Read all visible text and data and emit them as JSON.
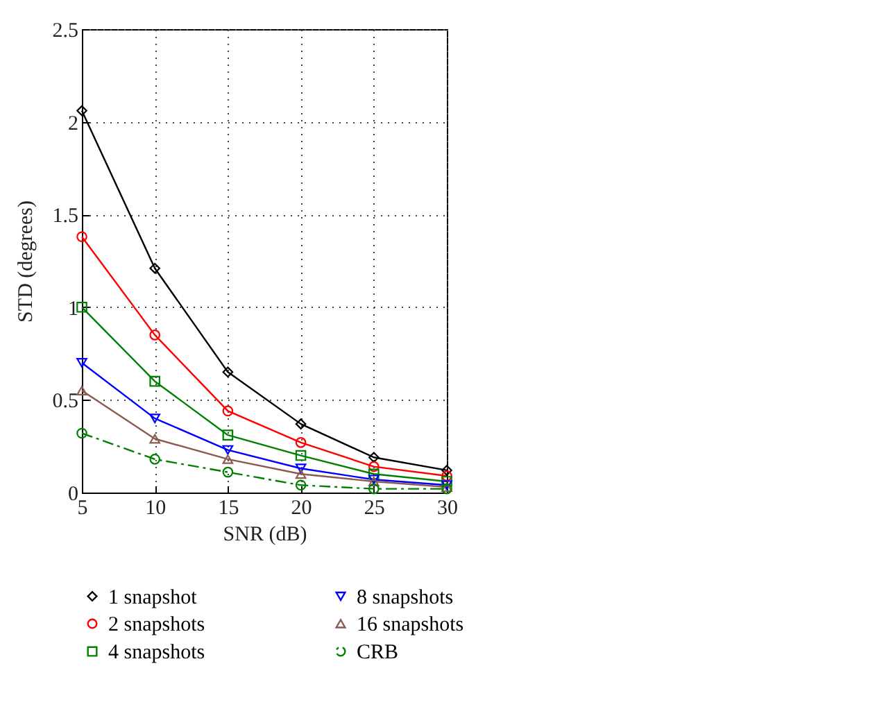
{
  "chart_data": {
    "type": "line",
    "xlabel": "SNR (dB)",
    "ylabel": "STD (degrees)",
    "x": [
      5,
      10,
      15,
      20,
      25,
      30
    ],
    "series": [
      {
        "name": "1 snapshot",
        "color": "#000000",
        "marker": "diamond",
        "line_style": "solid",
        "values": [
          2.06,
          1.21,
          0.65,
          0.37,
          0.19,
          0.12
        ]
      },
      {
        "name": "2 snapshots",
        "color": "#ff0000",
        "marker": "circle",
        "line_style": "solid",
        "values": [
          1.38,
          0.85,
          0.44,
          0.27,
          0.14,
          0.09
        ]
      },
      {
        "name": "4 snapshots",
        "color": "#008000",
        "marker": "square",
        "line_style": "solid",
        "values": [
          1.0,
          0.6,
          0.31,
          0.2,
          0.1,
          0.06
        ]
      },
      {
        "name": "8 snapshots",
        "color": "#0000ff",
        "marker": "triangle-down",
        "line_style": "solid",
        "values": [
          0.7,
          0.4,
          0.23,
          0.13,
          0.07,
          0.04
        ]
      },
      {
        "name": "16 snapshots",
        "color": "#8b5a50",
        "marker": "triangle",
        "line_style": "solid",
        "values": [
          0.55,
          0.29,
          0.18,
          0.1,
          0.06,
          0.03
        ]
      },
      {
        "name": "CRB",
        "color": "#008000",
        "marker": "circle",
        "line_style": "dashed",
        "values": [
          0.32,
          0.18,
          0.11,
          0.04,
          0.02,
          0.02
        ]
      }
    ],
    "xlim": [
      5,
      30
    ],
    "xticks": [
      5,
      10,
      15,
      20,
      25,
      30
    ],
    "ylim": [
      0,
      2.5
    ],
    "yticks": [
      0,
      0.5,
      1,
      1.5,
      2,
      2.5
    ],
    "grid": true,
    "legend": "bottom"
  }
}
